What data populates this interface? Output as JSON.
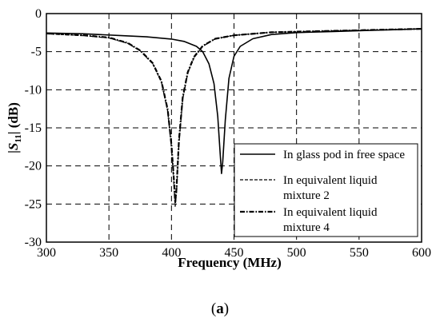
{
  "chart_data": {
    "type": "line",
    "xlabel": "Frequency (MHz)",
    "ylabel": {
      "prefix": "|",
      "symbol": "S",
      "subscript": "11",
      "suffix": "|  (dB)"
    },
    "xlim": [
      300,
      600
    ],
    "ylim": [
      -30,
      0
    ],
    "x_ticks": [
      300,
      350,
      400,
      450,
      500,
      550,
      600
    ],
    "y_ticks": [
      0,
      -5,
      -10,
      -15,
      -20,
      -25,
      -30
    ],
    "grid": true,
    "legend_position": "bottom-right",
    "series": [
      {
        "name": "In glass pod in free space",
        "style": "solid",
        "points": [
          [
            300,
            -2.55
          ],
          [
            330,
            -2.65
          ],
          [
            360,
            -2.9
          ],
          [
            380,
            -3.05
          ],
          [
            400,
            -3.35
          ],
          [
            410,
            -3.65
          ],
          [
            420,
            -4.3
          ],
          [
            425,
            -5.0
          ],
          [
            430,
            -6.6
          ],
          [
            434,
            -9.2
          ],
          [
            437,
            -13.5
          ],
          [
            439,
            -18.5
          ],
          [
            440,
            -21.0
          ],
          [
            441,
            -19.5
          ],
          [
            443,
            -14.0
          ],
          [
            446,
            -8.5
          ],
          [
            450,
            -5.6
          ],
          [
            455,
            -4.3
          ],
          [
            465,
            -3.3
          ],
          [
            480,
            -2.75
          ],
          [
            500,
            -2.5
          ],
          [
            530,
            -2.35
          ],
          [
            560,
            -2.2
          ],
          [
            600,
            -2.0
          ]
        ]
      },
      {
        "name": "In equivalent liquid mixture 2",
        "style": "dashed",
        "points": [
          [
            300,
            -2.65
          ],
          [
            330,
            -2.9
          ],
          [
            350,
            -3.2
          ],
          [
            365,
            -3.9
          ],
          [
            375,
            -4.9
          ],
          [
            385,
            -6.6
          ],
          [
            392,
            -9.0
          ],
          [
            397,
            -12.8
          ],
          [
            400,
            -17.5
          ],
          [
            402,
            -22.5
          ],
          [
            403,
            -25.3
          ],
          [
            404,
            -23.5
          ],
          [
            406,
            -17.0
          ],
          [
            409,
            -11.2
          ],
          [
            413,
            -7.8
          ],
          [
            418,
            -5.8
          ],
          [
            425,
            -4.3
          ],
          [
            435,
            -3.3
          ],
          [
            450,
            -2.85
          ],
          [
            480,
            -2.45
          ],
          [
            520,
            -2.3
          ],
          [
            560,
            -2.15
          ],
          [
            600,
            -2.0
          ]
        ]
      },
      {
        "name": "In equivalent liquid mixture 4",
        "style": "dashdot",
        "points": [
          [
            300,
            -2.6
          ],
          [
            330,
            -2.85
          ],
          [
            350,
            -3.15
          ],
          [
            365,
            -3.85
          ],
          [
            375,
            -4.85
          ],
          [
            385,
            -6.5
          ],
          [
            392,
            -8.9
          ],
          [
            397,
            -12.6
          ],
          [
            400,
            -17.2
          ],
          [
            402,
            -22.0
          ],
          [
            403,
            -24.8
          ],
          [
            404,
            -23.0
          ],
          [
            406,
            -16.6
          ],
          [
            409,
            -11.0
          ],
          [
            413,
            -7.7
          ],
          [
            418,
            -5.7
          ],
          [
            425,
            -4.25
          ],
          [
            435,
            -3.3
          ],
          [
            450,
            -2.85
          ],
          [
            480,
            -2.45
          ],
          [
            520,
            -2.3
          ],
          [
            560,
            -2.15
          ],
          [
            600,
            -2.0
          ]
        ]
      }
    ],
    "legend_lines": [
      [
        "In glass pod in free space"
      ],
      [
        "In equivalent liquid",
        "mixture 2"
      ],
      [
        "In equivalent liquid",
        "mixture 4"
      ]
    ]
  },
  "caption": {
    "open": "(",
    "letter": "a",
    "close": ")"
  }
}
